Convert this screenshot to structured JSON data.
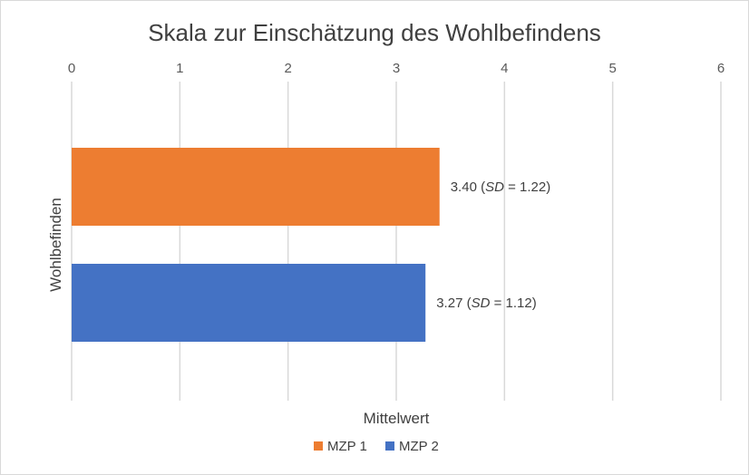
{
  "chart_data": {
    "type": "bar",
    "orientation": "horizontal",
    "title": "Skala zur Einschätzung des Wohlbefindens",
    "xlabel": "Mittelwert",
    "ylabel": "Wohlbefinden",
    "xlim": [
      0,
      6
    ],
    "ticks": [
      "0",
      "1",
      "2",
      "3",
      "4",
      "5",
      "6"
    ],
    "categories": [
      "Wohlbefinden"
    ],
    "series": [
      {
        "name": "MZP 1",
        "values": [
          3.4
        ],
        "sd": [
          1.22
        ],
        "color": "#ED7D31",
        "label_value": "3.40",
        "label_sd": "1.22"
      },
      {
        "name": "MZP 2",
        "values": [
          3.27
        ],
        "sd": [
          1.12
        ],
        "color": "#4472C4",
        "label_value": "3.27",
        "label_sd": "1.12"
      }
    ],
    "grid": true,
    "legend": "bottom",
    "sd_prefix": "SD"
  }
}
